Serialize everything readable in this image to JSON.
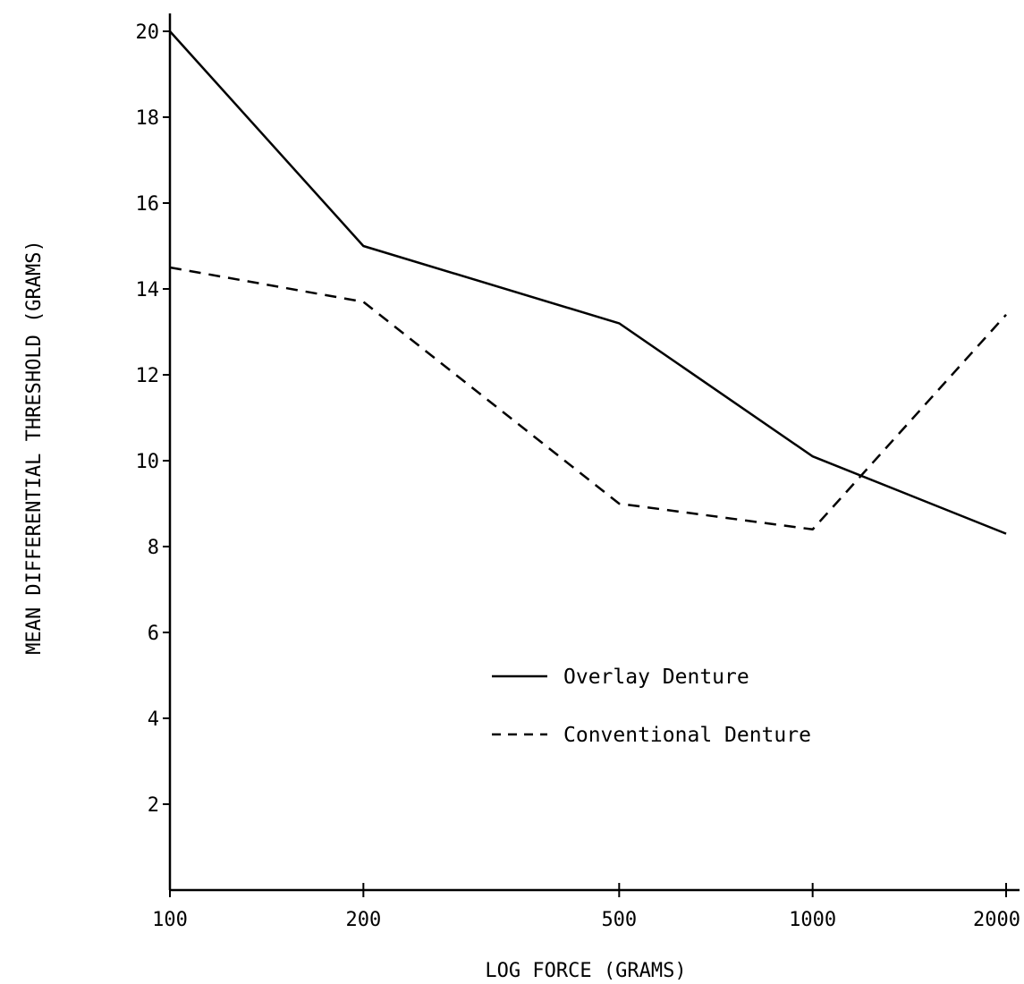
{
  "chart_data": {
    "type": "line",
    "title": "",
    "xlabel": "LOG FORCE (GRAMS)",
    "ylabel": "MEAN DIFFERENTIAL THRESHOLD (GRAMS)",
    "x_scale": "log",
    "x": [
      100,
      200,
      500,
      1000,
      2000
    ],
    "x_tick_labels": [
      "100",
      "200",
      "500",
      "1000",
      "2000"
    ],
    "y_ticks": [
      2,
      4,
      6,
      8,
      10,
      12,
      14,
      16,
      18,
      20
    ],
    "y_tick_labels": [
      "2",
      "4",
      "6",
      "8",
      "10",
      "12",
      "14",
      "16",
      "18",
      "20"
    ],
    "ylim": [
      0,
      20
    ],
    "grid": false,
    "legend_position": "center-right",
    "series": [
      {
        "name": "Overlay Denture",
        "line_style": "solid",
        "color": "#000000",
        "values": [
          20.0,
          15.0,
          13.2,
          10.1,
          8.3
        ]
      },
      {
        "name": "Conventional Denture",
        "line_style": "dashed",
        "color": "#000000",
        "values": [
          14.5,
          13.7,
          9.0,
          8.4,
          13.4
        ]
      }
    ]
  }
}
